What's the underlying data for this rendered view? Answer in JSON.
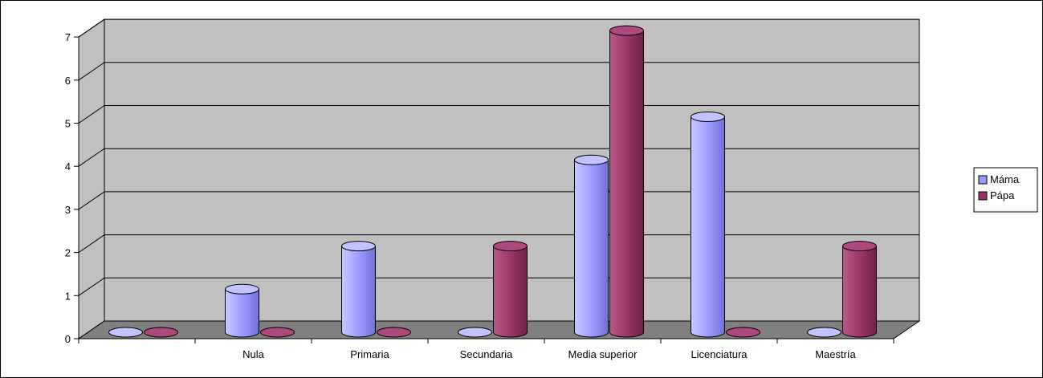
{
  "chart_data": {
    "type": "bar",
    "categories": [
      "",
      "Nula",
      "Primaria",
      "Secundaria",
      "Media superior",
      "Licenciatura",
      "Maestría"
    ],
    "series": [
      {
        "name": "Máma",
        "values": [
          0,
          1,
          2,
          0,
          4,
          5,
          0
        ]
      },
      {
        "name": "Pápa",
        "values": [
          0,
          0,
          0,
          2,
          7,
          0,
          2
        ]
      }
    ],
    "yticks": [
      "0",
      "1",
      "2",
      "3",
      "4",
      "5",
      "6",
      "7"
    ],
    "ylim": [
      0,
      7
    ],
    "grid": true,
    "legend_position": "right",
    "colors": {
      "series": [
        "#9999ff",
        "#993366"
      ],
      "wall": "#c0c0c0",
      "floor": "#808080"
    }
  }
}
